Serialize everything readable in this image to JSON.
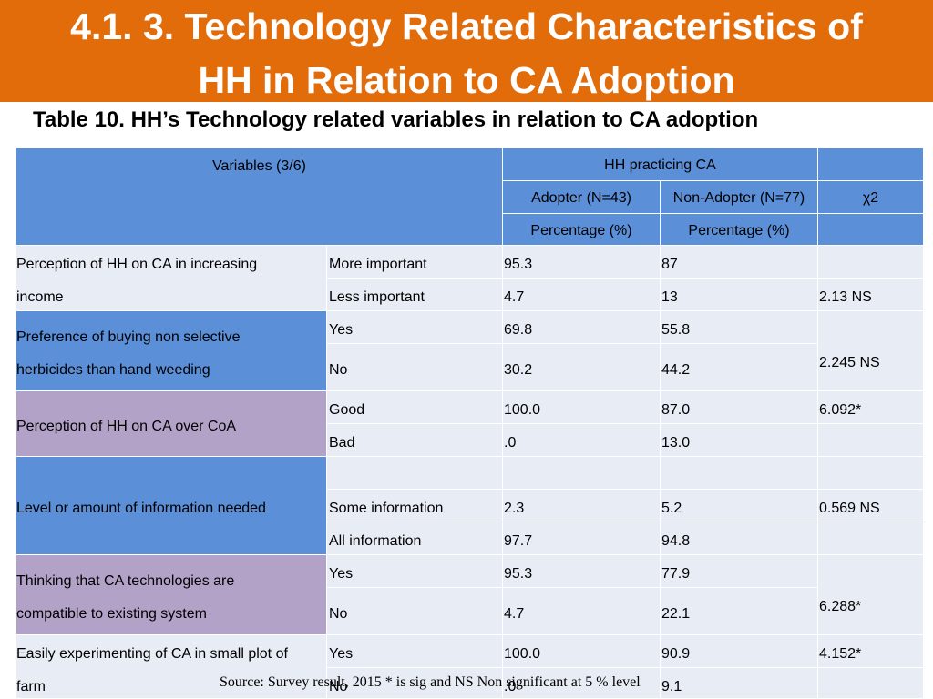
{
  "slide": {
    "title_line1": "4.1. 3. Technology Related Characteristics of",
    "title_line2": "HH in Relation to CA Adoption",
    "subtitle": "Table 10. HH’s Technology related variables in relation to CA adoption",
    "source": "Source: Survey result, 2015 * is sig and NS Non significant at 5 % level",
    "colors": {
      "title_bar": "#e36c0a",
      "header": "#5b8fd8",
      "purple_rows": "#b3a2c7",
      "light_cells": "#e8ecf5"
    }
  },
  "table": {
    "header": {
      "variables": "Variables (3/6)",
      "hh_practicing": "HH practicing CA",
      "adopter": "Adopter (N=43)",
      "non_adopter": "Non-Adopter (N=77)",
      "chi2": "χ2",
      "percentage_adopter": "Percentage (%)",
      "percentage_non_adopter": "Percentage (%)"
    },
    "groups": [
      {
        "variable_line1": "Perception of HH on CA in increasing",
        "variable_line2": "income",
        "rows": [
          {
            "response": "More important",
            "adopter": "95.3",
            "non_adopter": "87",
            "chi2": ""
          },
          {
            "response": "Less important",
            "adopter": "4.7",
            "non_adopter": "13",
            "chi2": "2.13 NS"
          }
        ]
      },
      {
        "variable_line1": "Preference of buying non selective",
        "variable_line2": "herbicides than hand weeding",
        "chi2": "2.245 NS",
        "rows": [
          {
            "response": "Yes",
            "adopter": "69.8",
            "non_adopter": "55.8"
          },
          {
            "response": "No",
            "adopter": "30.2",
            "non_adopter": "44.2"
          }
        ]
      },
      {
        "variable_line1": "Perception of HH on CA over CoA",
        "rows": [
          {
            "response": "Good",
            "adopter": "100.0",
            "non_adopter": "87.0",
            "chi2": "6.092*"
          },
          {
            "response": "Bad",
            "adopter": ".0",
            "non_adopter": "13.0",
            "chi2": ""
          }
        ]
      },
      {
        "variable_line1": "Level or amount of information needed",
        "rows": [
          {
            "response": "",
            "adopter": "",
            "non_adopter": "",
            "chi2": ""
          },
          {
            "response": "Some information",
            "adopter": "2.3",
            "non_adopter": "5.2",
            "chi2": "0.569 NS"
          },
          {
            "response": "All information",
            "adopter": "97.7",
            "non_adopter": "94.8",
            "chi2": ""
          }
        ]
      },
      {
        "variable_line1": "Thinking that CA technologies are",
        "variable_line2": "compatible to existing system",
        "chi2": "6.288*",
        "rows": [
          {
            "response": "Yes",
            "adopter": "95.3",
            "non_adopter": "77.9"
          },
          {
            "response": "No",
            "adopter": "4.7",
            "non_adopter": "22.1"
          }
        ]
      },
      {
        "variable_line1": "Easily experimenting of CA in small plot of",
        "variable_line2": "farm",
        "rows": [
          {
            "response": "Yes",
            "adopter": "100.0",
            "non_adopter": "90.9",
            "chi2": "4.152*"
          },
          {
            "response": "No",
            "adopter": ".0",
            "non_adopter": "9.1",
            "chi2": ""
          }
        ]
      }
    ]
  }
}
